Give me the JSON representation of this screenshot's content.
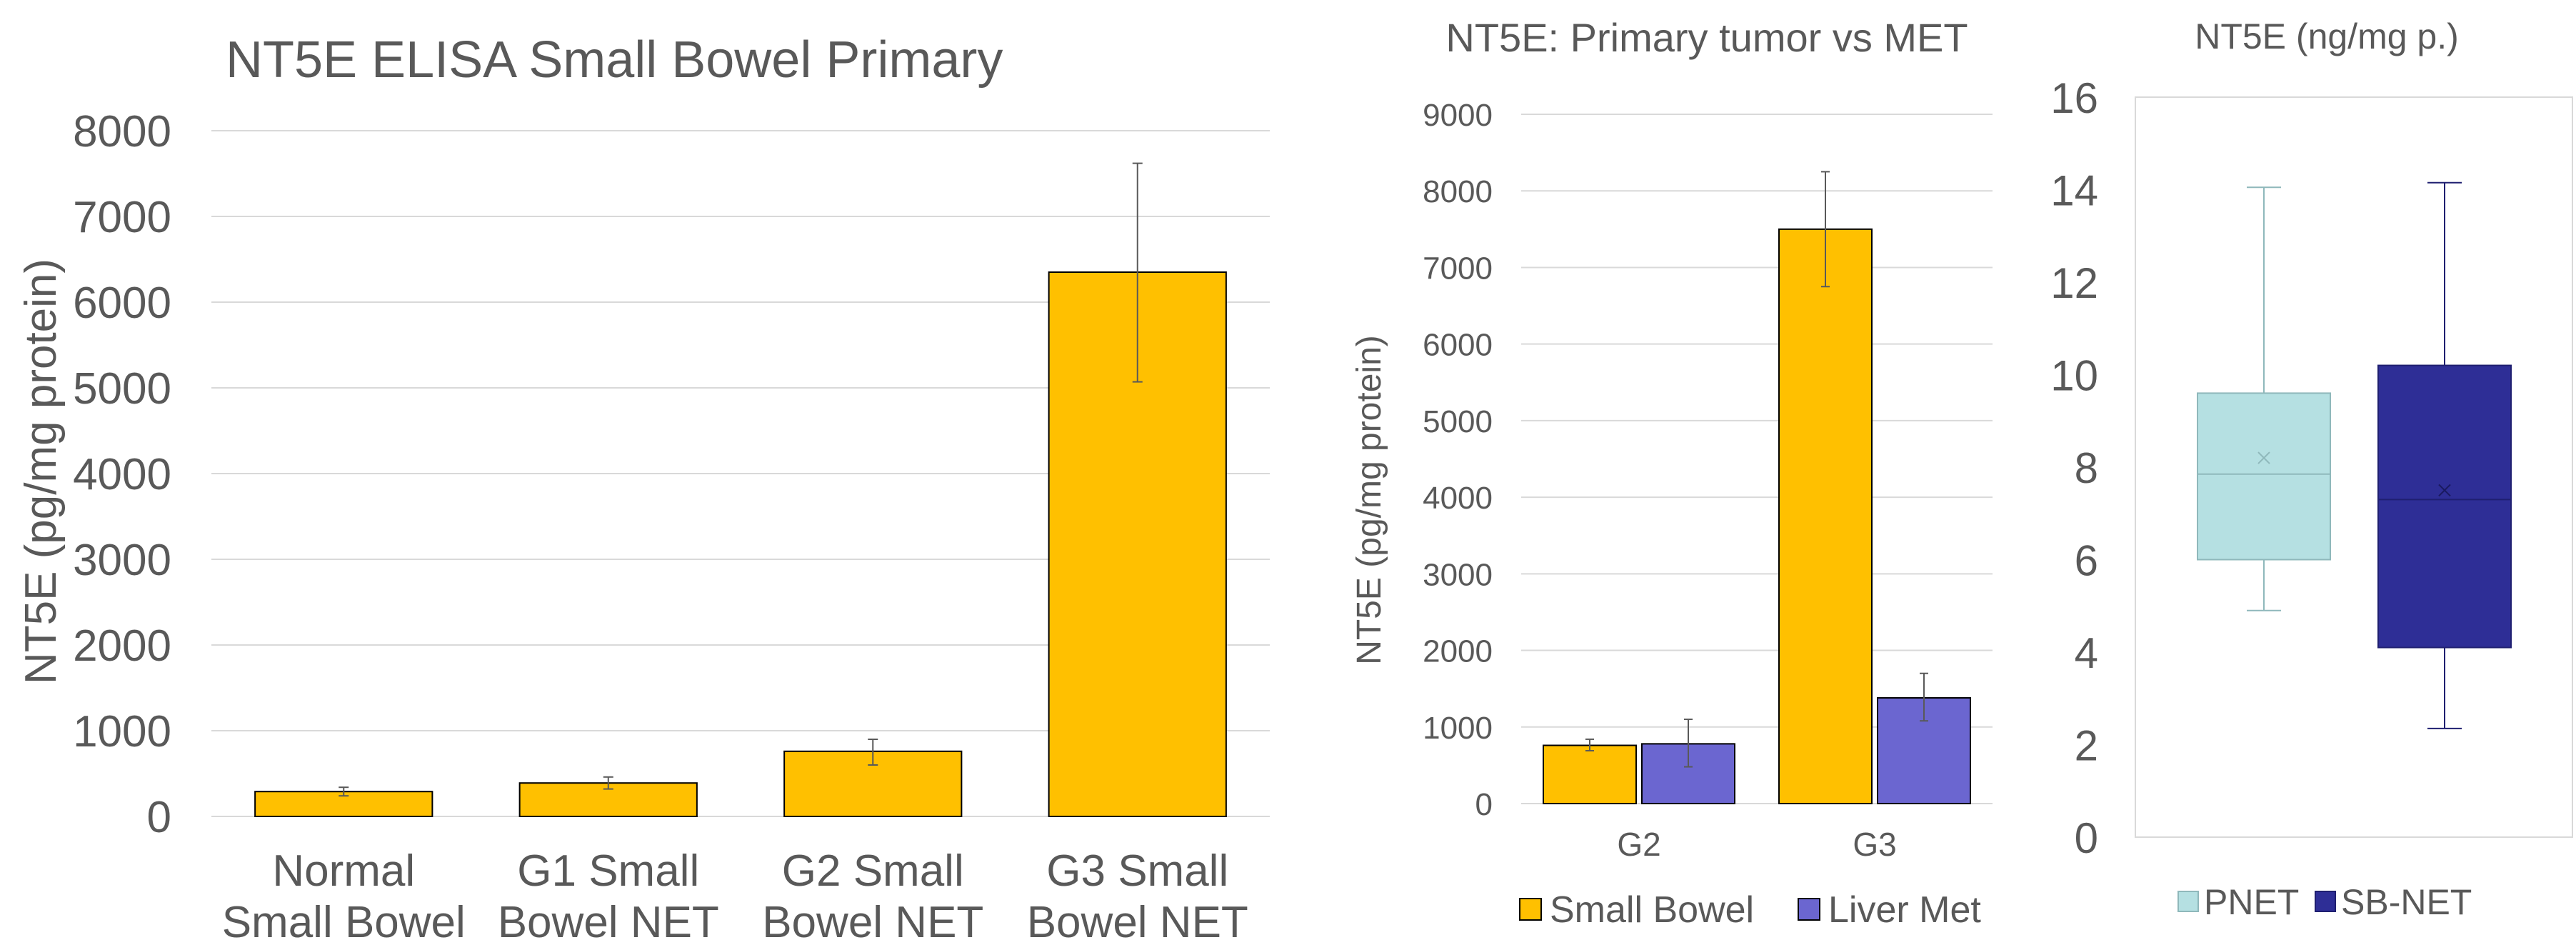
{
  "chart_data": [
    {
      "type": "bar",
      "title": "NT5E ELISA Small Bowel Primary",
      "xlabel": "",
      "ylabel": "NT5E (pg/mg protein)",
      "ylim": [
        0,
        8000
      ],
      "yticks": [
        "0",
        "1000",
        "2000",
        "3000",
        "4000",
        "5000",
        "6000",
        "7000",
        "8000"
      ],
      "categories": [
        [
          "Normal",
          "Small Bowel"
        ],
        [
          "G1 Small",
          "Bowel NET"
        ],
        [
          "G2 Small",
          "Bowel NET"
        ],
        [
          "G3 Small",
          "Bowel NET"
        ]
      ],
      "values": [
        290,
        390,
        760,
        6350
      ],
      "error_low": [
        240,
        320,
        600,
        5070
      ],
      "error_high": [
        340,
        460,
        900,
        7620
      ],
      "grid": true,
      "colors": {
        "bar": "#FFC000",
        "bar_stroke": "#000000",
        "error": "#595959",
        "grid": "#D9D9D9"
      }
    },
    {
      "type": "bar",
      "title": "NT5E: Primary tumor vs MET",
      "xlabel": "",
      "ylabel": "NT5E (pg/mg protein)",
      "ylim": [
        0,
        9000
      ],
      "yticks": [
        "0",
        "1000",
        "2000",
        "3000",
        "4000",
        "5000",
        "6000",
        "7000",
        "8000",
        "9000"
      ],
      "categories": [
        "G2",
        "G3"
      ],
      "series": [
        {
          "name": "Small Bowel",
          "color": "#FFC000",
          "values": [
            760,
            7500
          ],
          "error_low": [
            690,
            6750
          ],
          "error_high": [
            840,
            8250
          ]
        },
        {
          "name": "Liver Met",
          "color": "#6B66D0",
          "values": [
            780,
            1380
          ],
          "error_low": [
            480,
            1080
          ],
          "error_high": [
            1100,
            1700
          ]
        }
      ],
      "legend": "bottom",
      "grid": true
    },
    {
      "type": "box",
      "title": "NT5E (ng/mg p.)",
      "xlabel": "",
      "ylabel": "",
      "ylim": [
        0,
        16
      ],
      "yticks": [
        "0",
        "2",
        "4",
        "6",
        "8",
        "10",
        "12",
        "14",
        "16"
      ],
      "series": [
        {
          "name": "PNET",
          "color": "#B5E0E2",
          "stroke": "#8FB8BB",
          "min": 4.9,
          "q1": 6.0,
          "median": 7.85,
          "mean": 8.2,
          "q3": 9.6,
          "max": 14.05
        },
        {
          "name": "SB-NET",
          "color": "#2E2E96",
          "stroke": "#1F1F70",
          "min": 2.35,
          "q1": 4.1,
          "median": 7.3,
          "mean": 7.5,
          "q3": 10.2,
          "max": 14.15
        }
      ],
      "legend": "bottom",
      "grid": false
    }
  ]
}
